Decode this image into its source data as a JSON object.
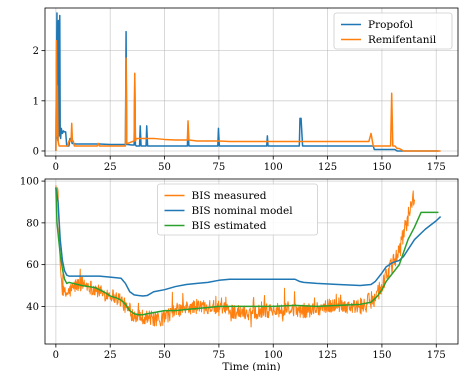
{
  "chart_data": [
    {
      "type": "line",
      "title": "",
      "xlabel": "",
      "ylabel": "",
      "xlim": [
        -5,
        185
      ],
      "ylim": [
        -0.1,
        2.85
      ],
      "xticks": [
        0,
        25,
        50,
        75,
        100,
        125,
        150,
        175
      ],
      "yticks": [
        0,
        1,
        2
      ],
      "grid": true,
      "legend_position": "top-right",
      "series": [
        {
          "name": "Propofol",
          "color": "#1f77b4",
          "x": [
            0,
            0.5,
            0.5,
            1,
            1.2,
            1.5,
            1.8,
            2,
            2.2,
            2.5,
            3,
            3.5,
            4,
            4.5,
            5,
            6,
            6.5,
            7,
            7.5,
            8,
            9,
            10,
            15,
            20,
            25,
            30,
            32,
            32.3,
            32.6,
            33,
            35,
            36,
            36.3,
            36.6,
            37,
            38.5,
            38.8,
            39.2,
            40,
            41.5,
            41.8,
            42.2,
            45,
            50,
            55,
            60,
            60.5,
            60.8,
            61.2,
            65,
            70,
            74.5,
            74.8,
            75.2,
            80,
            90,
            97,
            97.3,
            97.6,
            100,
            110,
            112,
            112.3,
            112.8,
            113.5,
            120,
            130,
            140,
            146,
            146.5,
            150,
            155,
            156,
            157,
            158,
            160,
            170,
            176
          ],
          "y": [
            0,
            2.75,
            0.3,
            0.2,
            2.6,
            0.3,
            2.7,
            0.3,
            0.25,
            0.45,
            0.35,
            0.4,
            0.38,
            0.38,
            0.1,
            0.1,
            0.25,
            0.25,
            0.15,
            0.15,
            0.14,
            0.14,
            0.14,
            0.14,
            0.13,
            0.13,
            0.13,
            2.38,
            0.13,
            0.13,
            0.12,
            0.12,
            1.4,
            0.12,
            0.1,
            0.1,
            0.5,
            0.1,
            0.1,
            0.1,
            0.5,
            0.1,
            0.1,
            0.1,
            0.1,
            0.1,
            0.1,
            0.45,
            0.1,
            0.1,
            0.1,
            0.1,
            0.45,
            0.1,
            0.1,
            0.1,
            0.1,
            0.3,
            0.1,
            0.1,
            0.1,
            0.1,
            0.65,
            0.65,
            0.1,
            0.1,
            0.1,
            0.1,
            0.1,
            0.03,
            0.03,
            0.03,
            0.03,
            0,
            0,
            0,
            0,
            0
          ]
        },
        {
          "name": "Remifentanil",
          "color": "#ff7f0e",
          "x": [
            0,
            0.3,
            0.5,
            0.7,
            1,
            1.5,
            2,
            3,
            4,
            5,
            5.5,
            6,
            7,
            7.3,
            7.6,
            8,
            8.5,
            9,
            10,
            12,
            15,
            18,
            19,
            19.5,
            20,
            25,
            30,
            32,
            32.3,
            32.6,
            33,
            36,
            36.3,
            36.6,
            37,
            40,
            45,
            50,
            55,
            60,
            60.5,
            60.8,
            61.2,
            65,
            70,
            75,
            80,
            90,
            100,
            110,
            120,
            130,
            140,
            144,
            145,
            146,
            147,
            148,
            150,
            153,
            154,
            154.5,
            155,
            156,
            157,
            158,
            160,
            170,
            177
          ],
          "y": [
            0,
            2.2,
            0.3,
            1.3,
            0.2,
            0.1,
            0.1,
            0.1,
            0.1,
            0.1,
            0.1,
            0.2,
            0.2,
            0.55,
            0.2,
            0.2,
            0.1,
            0.1,
            0.1,
            0.1,
            0.1,
            0.1,
            0.1,
            0.15,
            0.1,
            0.1,
            0.1,
            0.1,
            1.85,
            0.15,
            0.15,
            0.2,
            1.55,
            0.2,
            0.25,
            0.25,
            0.25,
            0.23,
            0.22,
            0.22,
            0.22,
            0.6,
            0.22,
            0.2,
            0.2,
            0.2,
            0.19,
            0.19,
            0.19,
            0.19,
            0.19,
            0.19,
            0.19,
            0.19,
            0.35,
            0.1,
            0.1,
            0.1,
            0.1,
            0.1,
            0.1,
            1.15,
            0.1,
            0.1,
            0.05,
            0.05,
            0,
            0,
            0
          ]
        }
      ]
    },
    {
      "type": "line",
      "title": "",
      "xlabel": "Time (min)",
      "ylabel": "",
      "xlim": [
        -5,
        185
      ],
      "ylim": [
        22,
        101
      ],
      "xticks": [
        0,
        25,
        50,
        75,
        100,
        125,
        150,
        175
      ],
      "yticks": [
        40,
        60,
        80,
        100
      ],
      "grid": true,
      "legend_position": "top-center",
      "series": [
        {
          "name": "BIS measured",
          "color": "#ff7f0e",
          "noise": true,
          "x": [
            0,
            1,
            2,
            3,
            4,
            5,
            7,
            9,
            12,
            15,
            18,
            20,
            22,
            25,
            28,
            30,
            32,
            34,
            36,
            38,
            40,
            42,
            45,
            48,
            50,
            55,
            60,
            65,
            70,
            75,
            80,
            85,
            90,
            95,
            100,
            105,
            110,
            115,
            120,
            125,
            130,
            135,
            140,
            143,
            145,
            147,
            150,
            152,
            155,
            158,
            160,
            162,
            164,
            165
          ],
          "y": [
            97,
            90,
            60,
            47,
            46,
            46,
            48,
            50,
            51,
            50,
            48,
            47,
            46,
            46,
            44,
            43,
            40,
            37,
            36,
            36,
            35,
            35,
            34,
            33,
            35,
            38,
            39,
            40,
            40,
            39,
            38,
            37,
            37,
            38,
            38,
            38,
            38,
            38,
            39,
            40,
            41,
            40,
            40,
            41,
            43,
            45,
            50,
            55,
            60,
            66,
            75,
            83,
            90,
            94
          ]
        },
        {
          "name": "BIS nominal model",
          "color": "#1f77b4",
          "noise": false,
          "x": [
            0,
            1,
            2,
            3,
            4,
            5,
            6,
            8,
            10,
            15,
            20,
            25,
            30,
            32,
            34,
            36,
            38,
            40,
            42,
            45,
            50,
            55,
            60,
            65,
            70,
            75,
            80,
            90,
            100,
            110,
            112,
            114,
            120,
            130,
            140,
            145,
            147,
            150,
            152,
            155,
            158,
            160,
            165,
            170,
            175,
            177
          ],
          "y": [
            97,
            90,
            72,
            62,
            57,
            55,
            54.5,
            54.5,
            54.5,
            54.5,
            54.5,
            54,
            53.5,
            51,
            47,
            45.5,
            45.2,
            45,
            45.2,
            47,
            48,
            49.5,
            50.5,
            51,
            51.5,
            52.5,
            53,
            53,
            53,
            53,
            52,
            51.5,
            51,
            50.5,
            50,
            50.5,
            52,
            56,
            59,
            61,
            62,
            64,
            72,
            77,
            81,
            83
          ]
        },
        {
          "name": "BIS estimated",
          "color": "#2ca02c",
          "noise": false,
          "x": [
            0,
            0.5,
            1,
            2,
            3,
            4,
            5,
            6,
            8,
            10,
            12,
            15,
            18,
            20,
            22,
            25,
            28,
            30,
            32,
            34,
            36,
            38,
            40,
            42,
            45,
            50,
            55,
            60,
            65,
            70,
            75,
            80,
            90,
            100,
            110,
            120,
            130,
            140,
            145,
            148,
            150,
            152,
            155,
            158,
            160,
            162,
            165,
            168,
            172,
            176
          ],
          "y": [
            97,
            80,
            75,
            65,
            58,
            53,
            51,
            51.5,
            51,
            50.5,
            50,
            49.5,
            49,
            48,
            47,
            45,
            44,
            43,
            41,
            38,
            36.5,
            36,
            36,
            36.5,
            37,
            38,
            38,
            38.5,
            39,
            39.5,
            40,
            40,
            40,
            40,
            40.5,
            40,
            40.5,
            41,
            42,
            45,
            48,
            52,
            56,
            60,
            66,
            72,
            78,
            85,
            85,
            85
          ]
        }
      ]
    }
  ]
}
